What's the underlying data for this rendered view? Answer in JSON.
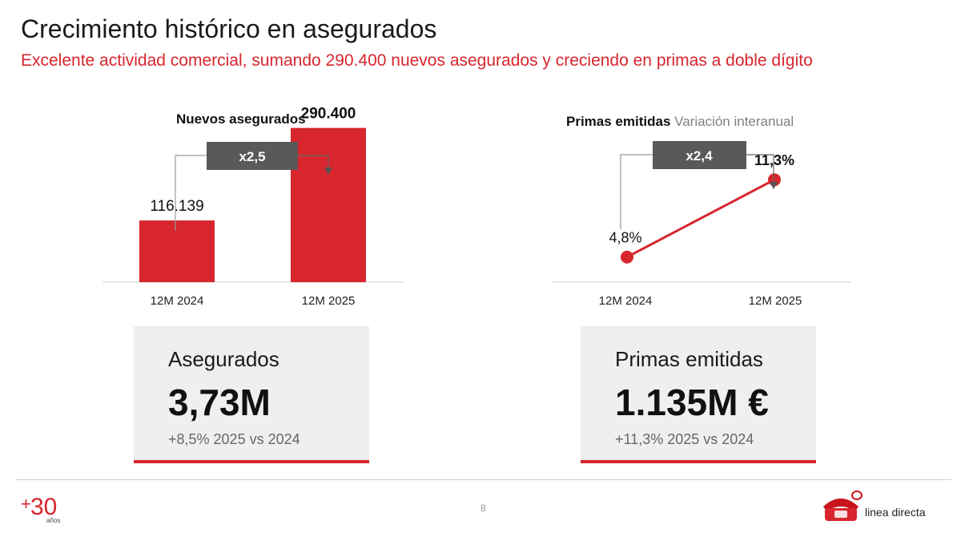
{
  "header": {
    "title": "Crecimiento histórico en asegurados",
    "subtitle": "Excelente actividad comercial, sumando 290.400 nuevos asegurados y creciendo en primas a doble dígito"
  },
  "colors": {
    "accent": "#d7262d",
    "dark_box": "#595959",
    "kpi_bg": "#f0efef"
  },
  "chart_data": [
    {
      "type": "bar",
      "title": "Nuevos asegurados",
      "categories": [
        "12M 2024",
        "12M 2025"
      ],
      "values": [
        116139,
        290400
      ],
      "value_labels": [
        "116.139",
        "290.400"
      ],
      "ylim": [
        0,
        320000
      ],
      "annotation": "x2,5"
    },
    {
      "type": "line",
      "title": "Primas emitidas",
      "subtitle": "Variación interanual",
      "categories": [
        "12M 2024",
        "12M 2025"
      ],
      "values": [
        4.8,
        11.3
      ],
      "value_labels": [
        "4,8%",
        "11,3%"
      ],
      "ylim": [
        0,
        14
      ],
      "annotation": "x2,4"
    }
  ],
  "kpis": [
    {
      "label": "Asegurados",
      "value": "3,73M",
      "delta": "+8,5% 2025 vs 2024"
    },
    {
      "label": "Primas emitidas",
      "value": "1.135M €",
      "delta": "+11,3% 2025 vs 2024"
    }
  ],
  "footer": {
    "page": "8",
    "anniversary_mark": "+30 años",
    "brand": "linea directa"
  }
}
